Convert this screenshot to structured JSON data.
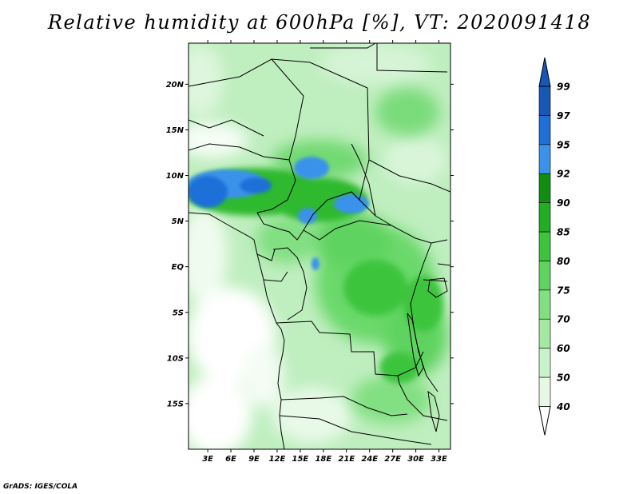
{
  "title": "Relative humidity at 600hPa [%], VT: 2020091418",
  "credit": "GrADS: IGES/COLA",
  "map": {
    "lon_range": [
      0.5,
      34.5
    ],
    "lat_range": [
      -20,
      24.5
    ],
    "lon_ticks": [
      {
        "value": 3,
        "label": "3E"
      },
      {
        "value": 6,
        "label": "6E"
      },
      {
        "value": 9,
        "label": "9E"
      },
      {
        "value": 12,
        "label": "12E"
      },
      {
        "value": 15,
        "label": "15E"
      },
      {
        "value": 18,
        "label": "18E"
      },
      {
        "value": 21,
        "label": "21E"
      },
      {
        "value": 24,
        "label": "24E"
      },
      {
        "value": 27,
        "label": "27E"
      },
      {
        "value": 30,
        "label": "30E"
      },
      {
        "value": 33,
        "label": "33E"
      }
    ],
    "lat_ticks": [
      {
        "value": 20,
        "label": "20N"
      },
      {
        "value": 15,
        "label": "15N"
      },
      {
        "value": 10,
        "label": "10N"
      },
      {
        "value": 5,
        "label": "5N"
      },
      {
        "value": 0,
        "label": "EQ"
      },
      {
        "value": -5,
        "label": "5S"
      },
      {
        "value": -10,
        "label": "10S"
      },
      {
        "value": -15,
        "label": "15S"
      }
    ]
  },
  "colorbar": {
    "levels": [
      "40",
      "50",
      "60",
      "70",
      "75",
      "80",
      "85",
      "90",
      "92",
      "95",
      "97",
      "99"
    ],
    "colors": [
      "#ffffff",
      "#e6f9e6",
      "#c8f2c8",
      "#a4e8a4",
      "#82df82",
      "#5fd35f",
      "#3cc43c",
      "#22ae22",
      "#108e10",
      "#3a92ea",
      "#1f6fd8",
      "#1757b8"
    ]
  }
}
